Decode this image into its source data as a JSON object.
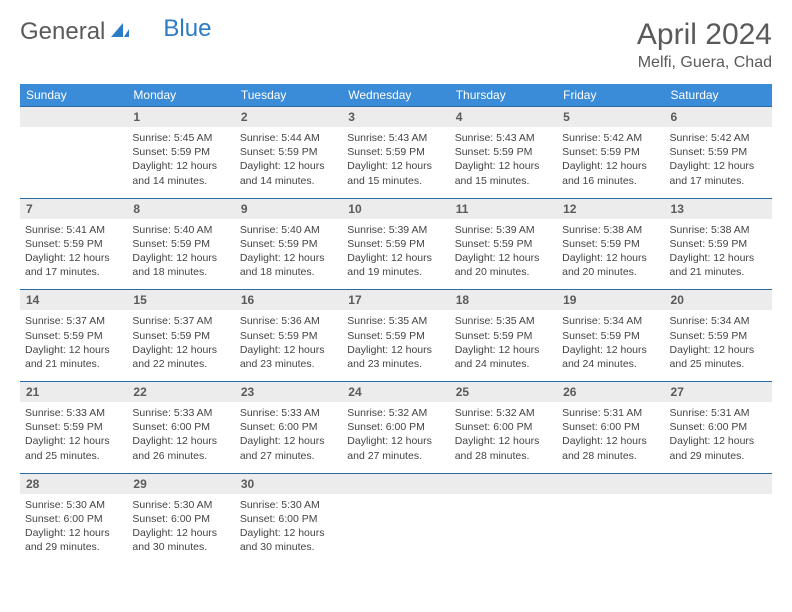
{
  "logo": {
    "text_gray": "General",
    "text_blue": "Blue"
  },
  "title": "April 2024",
  "location": "Melfi, Guera, Chad",
  "weekdays": [
    "Sunday",
    "Monday",
    "Tuesday",
    "Wednesday",
    "Thursday",
    "Friday",
    "Saturday"
  ],
  "colors": {
    "header_bg": "#3a8bd8",
    "header_text": "#ffffff",
    "row_border": "#2c6aa8",
    "daynum_bg": "#ececec",
    "text": "#5a5a5a",
    "logo_blue": "#2c7bc6"
  },
  "weeks": [
    [
      {},
      {
        "n": "1",
        "sunrise": "5:45 AM",
        "sunset": "5:59 PM",
        "daylight": "12 hours and 14 minutes."
      },
      {
        "n": "2",
        "sunrise": "5:44 AM",
        "sunset": "5:59 PM",
        "daylight": "12 hours and 14 minutes."
      },
      {
        "n": "3",
        "sunrise": "5:43 AM",
        "sunset": "5:59 PM",
        "daylight": "12 hours and 15 minutes."
      },
      {
        "n": "4",
        "sunrise": "5:43 AM",
        "sunset": "5:59 PM",
        "daylight": "12 hours and 15 minutes."
      },
      {
        "n": "5",
        "sunrise": "5:42 AM",
        "sunset": "5:59 PM",
        "daylight": "12 hours and 16 minutes."
      },
      {
        "n": "6",
        "sunrise": "5:42 AM",
        "sunset": "5:59 PM",
        "daylight": "12 hours and 17 minutes."
      }
    ],
    [
      {
        "n": "7",
        "sunrise": "5:41 AM",
        "sunset": "5:59 PM",
        "daylight": "12 hours and 17 minutes."
      },
      {
        "n": "8",
        "sunrise": "5:40 AM",
        "sunset": "5:59 PM",
        "daylight": "12 hours and 18 minutes."
      },
      {
        "n": "9",
        "sunrise": "5:40 AM",
        "sunset": "5:59 PM",
        "daylight": "12 hours and 18 minutes."
      },
      {
        "n": "10",
        "sunrise": "5:39 AM",
        "sunset": "5:59 PM",
        "daylight": "12 hours and 19 minutes."
      },
      {
        "n": "11",
        "sunrise": "5:39 AM",
        "sunset": "5:59 PM",
        "daylight": "12 hours and 20 minutes."
      },
      {
        "n": "12",
        "sunrise": "5:38 AM",
        "sunset": "5:59 PM",
        "daylight": "12 hours and 20 minutes."
      },
      {
        "n": "13",
        "sunrise": "5:38 AM",
        "sunset": "5:59 PM",
        "daylight": "12 hours and 21 minutes."
      }
    ],
    [
      {
        "n": "14",
        "sunrise": "5:37 AM",
        "sunset": "5:59 PM",
        "daylight": "12 hours and 21 minutes."
      },
      {
        "n": "15",
        "sunrise": "5:37 AM",
        "sunset": "5:59 PM",
        "daylight": "12 hours and 22 minutes."
      },
      {
        "n": "16",
        "sunrise": "5:36 AM",
        "sunset": "5:59 PM",
        "daylight": "12 hours and 23 minutes."
      },
      {
        "n": "17",
        "sunrise": "5:35 AM",
        "sunset": "5:59 PM",
        "daylight": "12 hours and 23 minutes."
      },
      {
        "n": "18",
        "sunrise": "5:35 AM",
        "sunset": "5:59 PM",
        "daylight": "12 hours and 24 minutes."
      },
      {
        "n": "19",
        "sunrise": "5:34 AM",
        "sunset": "5:59 PM",
        "daylight": "12 hours and 24 minutes."
      },
      {
        "n": "20",
        "sunrise": "5:34 AM",
        "sunset": "5:59 PM",
        "daylight": "12 hours and 25 minutes."
      }
    ],
    [
      {
        "n": "21",
        "sunrise": "5:33 AM",
        "sunset": "5:59 PM",
        "daylight": "12 hours and 25 minutes."
      },
      {
        "n": "22",
        "sunrise": "5:33 AM",
        "sunset": "6:00 PM",
        "daylight": "12 hours and 26 minutes."
      },
      {
        "n": "23",
        "sunrise": "5:33 AM",
        "sunset": "6:00 PM",
        "daylight": "12 hours and 27 minutes."
      },
      {
        "n": "24",
        "sunrise": "5:32 AM",
        "sunset": "6:00 PM",
        "daylight": "12 hours and 27 minutes."
      },
      {
        "n": "25",
        "sunrise": "5:32 AM",
        "sunset": "6:00 PM",
        "daylight": "12 hours and 28 minutes."
      },
      {
        "n": "26",
        "sunrise": "5:31 AM",
        "sunset": "6:00 PM",
        "daylight": "12 hours and 28 minutes."
      },
      {
        "n": "27",
        "sunrise": "5:31 AM",
        "sunset": "6:00 PM",
        "daylight": "12 hours and 29 minutes."
      }
    ],
    [
      {
        "n": "28",
        "sunrise": "5:30 AM",
        "sunset": "6:00 PM",
        "daylight": "12 hours and 29 minutes."
      },
      {
        "n": "29",
        "sunrise": "5:30 AM",
        "sunset": "6:00 PM",
        "daylight": "12 hours and 30 minutes."
      },
      {
        "n": "30",
        "sunrise": "5:30 AM",
        "sunset": "6:00 PM",
        "daylight": "12 hours and 30 minutes."
      },
      {},
      {},
      {},
      {}
    ]
  ],
  "labels": {
    "sunrise": "Sunrise:",
    "sunset": "Sunset:",
    "daylight": "Daylight:"
  }
}
